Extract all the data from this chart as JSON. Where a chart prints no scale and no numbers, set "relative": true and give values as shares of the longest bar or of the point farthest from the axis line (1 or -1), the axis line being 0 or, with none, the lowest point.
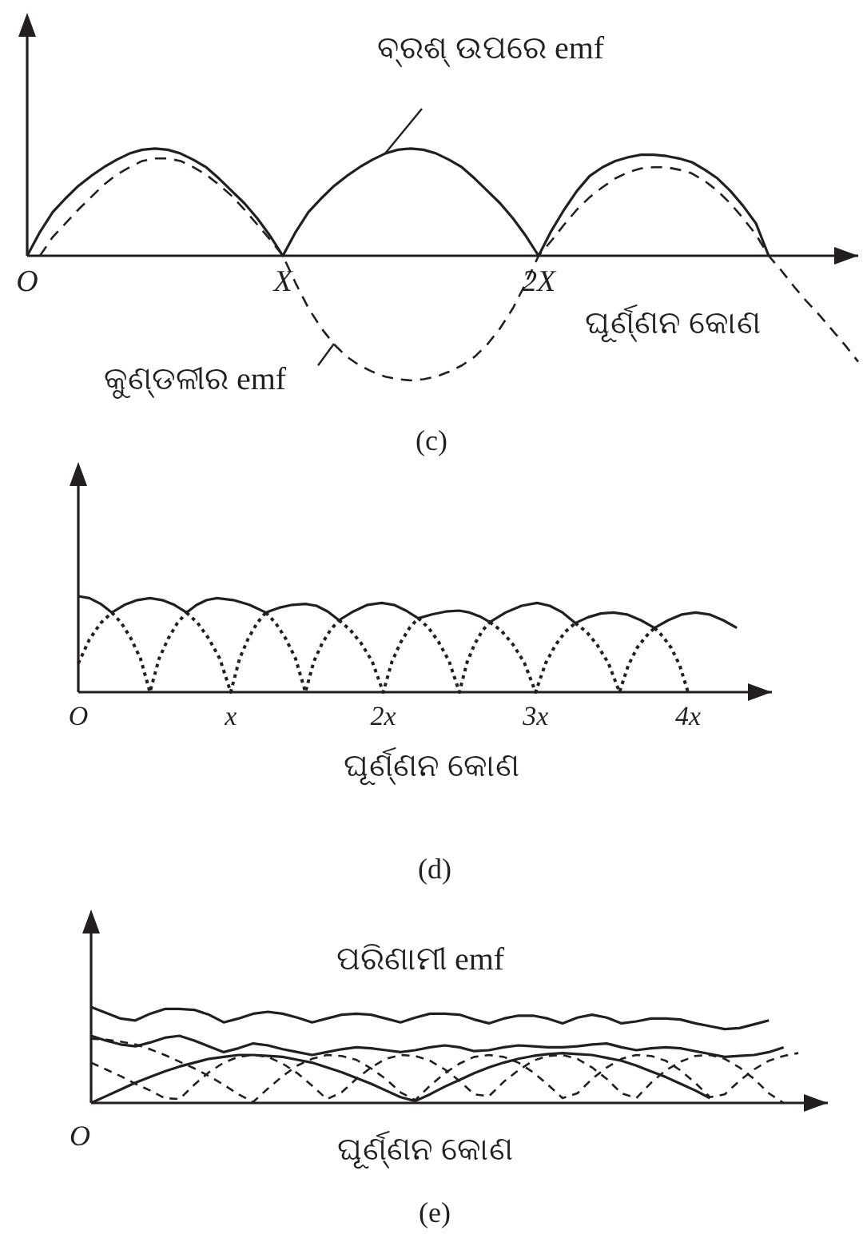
{
  "chart_data": [
    {
      "type": "line",
      "title": "(c)",
      "xlabel": "ଘୂର୍ଣ୍ଣନ କୋଣ",
      "relative": true,
      "marker": "none",
      "tick_labels": "x",
      "categories": [
        "O",
        null,
        null,
        null,
        null,
        null,
        null,
        null,
        null,
        null,
        null,
        null,
        null,
        null,
        null,
        null,
        null,
        null,
        null,
        null,
        "X",
        null,
        null,
        null,
        null,
        null,
        null,
        null,
        null,
        null,
        null,
        null,
        null,
        null,
        null,
        null,
        null,
        null,
        null,
        null,
        "2X",
        null,
        null,
        null,
        null,
        null,
        null,
        null,
        null,
        null,
        null,
        null,
        null,
        null,
        null,
        null,
        null,
        null,
        null,
        null,
        null,
        null,
        null,
        null,
        null,
        null
      ],
      "series": [
        {
          "name": "ବ୍ରଶ୍ ଉପରେ emf",
          "color": "#231f20",
          "line_style": "solid",
          "values": [
            0,
            0.19,
            0.35,
            0.46,
            0.56,
            0.64,
            0.71,
            0.77,
            0.82,
            0.85,
            0.86,
            0.85,
            0.82,
            0.77,
            0.71,
            0.62,
            0.52,
            0.42,
            0.3,
            0.16,
            0,
            0.19,
            0.35,
            0.46,
            0.56,
            0.64,
            0.71,
            0.77,
            0.82,
            0.85,
            0.86,
            0.85,
            0.82,
            0.77,
            0.71,
            0.62,
            0.52,
            0.42,
            0.3,
            0.16,
            0,
            0.2,
            0.37,
            0.52,
            0.64,
            0.71,
            0.76,
            0.79,
            0.81,
            0.81,
            0.8,
            0.78,
            0.75,
            0.69,
            0.62,
            0.52,
            0.4,
            0.26,
            0,
            null,
            null,
            null,
            null,
            null,
            null,
            null
          ]
        },
        {
          "name": "କୁଣ୍ଡଳୀର emf",
          "color": "#231f20",
          "line_style": "dashed",
          "values": [
            null,
            0,
            0.15,
            0.26,
            0.37,
            0.47,
            0.57,
            0.65,
            0.71,
            0.76,
            0.78,
            0.78,
            0.76,
            0.71,
            0.65,
            0.57,
            0.48,
            0.37,
            0.25,
            0.13,
            0,
            -0.22,
            -0.42,
            -0.58,
            -0.71,
            -0.81,
            -0.88,
            -0.93,
            -0.97,
            -0.99,
            -1,
            -0.99,
            -0.97,
            -0.93,
            -0.88,
            -0.81,
            -0.71,
            -0.58,
            -0.42,
            -0.22,
            0,
            0.12,
            0.25,
            0.37,
            0.47,
            0.55,
            0.62,
            0.67,
            0.7,
            0.71,
            0.71,
            0.69,
            0.66,
            0.6,
            0.52,
            0.42,
            0.3,
            0.17,
            0,
            -0.12,
            -0.25,
            -0.37,
            -0.48,
            -0.6,
            -0.72,
            -0.85
          ]
        }
      ]
    },
    {
      "type": "line",
      "title": "(d)",
      "xlabel": "ଘୂର୍ଣ୍ଣନ କୋଣ",
      "relative": true,
      "marker": "none",
      "tick_labels": "x",
      "xlim": [
        0,
        4.55
      ],
      "xticks": [
        {
          "value": 0,
          "label": "O"
        },
        {
          "value": 1,
          "label": "x"
        },
        {
          "value": 2,
          "label": "2x"
        },
        {
          "value": 3,
          "label": "3x"
        },
        {
          "value": 4,
          "label": "4x"
        }
      ],
      "series": [
        {
          "color": "#231f20",
          "line_style": "solid",
          "x": [
            0,
            0.073,
            0.147,
            0.22,
            0.303,
            0.387,
            0.47,
            0.55,
            0.63,
            0.71,
            0.777,
            0.843,
            0.91,
            1.017,
            1.123,
            1.23,
            1.317,
            1.403,
            1.49,
            1.563,
            1.637,
            1.71,
            1.803,
            1.897,
            1.99,
            2.07,
            2.15,
            2.23,
            2.32,
            2.41,
            2.5,
            2.567,
            2.633,
            2.7,
            2.803,
            2.907,
            3.01,
            3.093,
            3.177,
            3.26,
            3.343,
            3.427,
            3.51,
            3.6,
            3.69,
            3.78,
            3.87,
            3.96,
            4.05,
            4.14,
            4.23,
            4.32
          ],
          "values": [
            1,
            0.98,
            0.92,
            0.83,
            0.91,
            0.96,
            0.98,
            0.96,
            0.91,
            0.83,
            0.91,
            0.96,
            0.98,
            0.96,
            0.91,
            0.83,
            0.88,
            0.91,
            0.92,
            0.9,
            0.84,
            0.75,
            0.84,
            0.91,
            0.93,
            0.91,
            0.85,
            0.77,
            0.81,
            0.84,
            0.85,
            0.83,
            0.79,
            0.73,
            0.83,
            0.9,
            0.93,
            0.9,
            0.83,
            0.72,
            0.78,
            0.82,
            0.83,
            0.81,
            0.75,
            0.67,
            0.75,
            0.81,
            0.83,
            0.81,
            0.75,
            0.67
          ]
        },
        {
          "color": "#231f20",
          "line_style": "dotted",
          "x": [
            0.22,
            0.283,
            0.345,
            0.408,
            0.47,
            0.53,
            0.59,
            0.65,
            0.71,
            0.8,
            1.23,
            1.295,
            1.36,
            1.425,
            1.49,
            1.545,
            1.6,
            1.655,
            1.71,
            1.9,
            2.23,
            2.298,
            2.365,
            2.433,
            2.5,
            2.55,
            2.6,
            2.65,
            2.7,
            2.9,
            3.26,
            3.333,
            3.405,
            3.478,
            3.55,
            3.608,
            3.665,
            3.723,
            3.78
          ],
          "values": [
            0.83,
            0.72,
            0.56,
            0.35,
            0,
            0.35,
            0.56,
            0.72,
            0.83,
            null,
            0.83,
            0.72,
            0.56,
            0.35,
            0,
            0.32,
            0.51,
            0.65,
            0.75,
            null,
            0.77,
            0.67,
            0.52,
            0.32,
            0,
            0.31,
            0.5,
            0.64,
            0.73,
            null,
            0.72,
            0.63,
            0.49,
            0.3,
            0,
            0.28,
            0.46,
            0.58,
            0.67
          ]
        },
        {
          "color": "#231f20",
          "line_style": "dotted",
          "x": [
            0,
            0.073,
            0.147,
            0.22,
            0.4,
            0.71,
            0.783,
            0.855,
            0.928,
            1,
            1.058,
            1.115,
            1.173,
            1.23,
            1.4,
            1.71,
            1.783,
            1.855,
            1.928,
            2,
            2.058,
            2.115,
            2.173,
            2.23,
            2.4,
            2.7,
            2.775,
            2.85,
            2.925,
            3,
            3.065,
            3.13,
            3.195,
            3.26,
            3.5,
            3.78,
            3.835,
            3.89,
            3.945,
            4
          ],
          "values": [
            0.3,
            0.55,
            0.72,
            0.83,
            null,
            0.83,
            0.72,
            0.56,
            0.35,
            0,
            0.35,
            0.56,
            0.72,
            0.83,
            null,
            0.75,
            0.65,
            0.51,
            0.32,
            0,
            0.32,
            0.52,
            0.67,
            0.77,
            null,
            0.73,
            0.64,
            0.5,
            0.31,
            0,
            0.3,
            0.49,
            0.63,
            0.72,
            null,
            0.67,
            0.58,
            0.46,
            0.28,
            0
          ]
        }
      ]
    },
    {
      "type": "line",
      "title": "(e)",
      "xlabel": "ଘୂର୍ଣ୍ଣନ କୋଣ",
      "relative": true,
      "marker": "none",
      "tick_labels": "x",
      "annotations": [
        "O"
      ],
      "categories": [
        null,
        null,
        null,
        null,
        null,
        null,
        null,
        null,
        null,
        null,
        null,
        null,
        null,
        null,
        null,
        null,
        null,
        null,
        null,
        null,
        null,
        null,
        null,
        null,
        null,
        null,
        null,
        null,
        null,
        null,
        null,
        null,
        null,
        null,
        null,
        null,
        null,
        null,
        null,
        null,
        null,
        null,
        null,
        null,
        null,
        null,
        null,
        null,
        null,
        null,
        null
      ],
      "series": [
        {
          "name": "ପରିଣାମୀ emf",
          "color": "#231f20",
          "line_style": "solid",
          "values": [
            1,
            0.94,
            0.88,
            0.86,
            0.93,
            0.98,
            0.98,
            0.97,
            0.92,
            0.84,
            0.88,
            0.93,
            0.95,
            0.93,
            0.89,
            0.84,
            0.88,
            0.92,
            0.93,
            0.92,
            0.88,
            0.84,
            0.89,
            0.93,
            0.93,
            0.92,
            0.87,
            0.83,
            0.88,
            0.91,
            0.91,
            0.88,
            0.83,
            0.89,
            0.92,
            0.89,
            0.83,
            0.85,
            0.88,
            0.88,
            0.87,
            0.83,
            0.8,
            0.77,
            0.78,
            0.82,
            0.86,
            null,
            null,
            null,
            null
          ]
        },
        {
          "color": "#231f20",
          "line_style": "solid",
          "values": [
            0.7,
            0.65,
            0.61,
            0.59,
            0.63,
            0.68,
            0.7,
            0.65,
            0.59,
            0.53,
            0.57,
            0.62,
            0.6,
            0.56,
            0.53,
            0.5,
            0.53,
            0.56,
            0.58,
            0.57,
            0.55,
            0.53,
            0.55,
            0.58,
            0.6,
            0.58,
            0.54,
            0.55,
            0.58,
            0.6,
            0.59,
            0.58,
            0.58,
            0.59,
            0.61,
            0.62,
            0.58,
            0.55,
            0.57,
            0.58,
            0.57,
            0.54,
            0.51,
            0.48,
            0.49,
            0.5,
            0.53,
            0.58,
            null,
            null,
            null
          ]
        },
        {
          "color": "#231f20",
          "line_style": "solid",
          "values": [
            0,
            0.07,
            0.14,
            0.21,
            0.27,
            0.33,
            0.38,
            0.42,
            0.46,
            0.48,
            0.5,
            0.5,
            0.49,
            0.48,
            0.45,
            0.42,
            0.37,
            0.32,
            0.26,
            0.2,
            0.13,
            0.06,
            0.02,
            0.09,
            0.17,
            0.24,
            0.31,
            0.37,
            0.42,
            0.46,
            0.49,
            0.51,
            0.52,
            0.51,
            0.5,
            0.47,
            0.44,
            0.39,
            0.33,
            0.27,
            0.2,
            0.13,
            0.05,
            null,
            null,
            null,
            null,
            null,
            null,
            null,
            null
          ]
        },
        {
          "color": "#231f20",
          "line_style": "dashed",
          "values": [
            0.42,
            0.35,
            0.28,
            0.2,
            0.13,
            0.05,
            0.04,
            0.19,
            0.32,
            0.42,
            0.48,
            0.5,
            0.48,
            0.41,
            0.31,
            0.18,
            0.04,
            0.11,
            0.25,
            0.37,
            0.46,
            0.5,
            0.49,
            0.44,
            0.35,
            0.23,
            0.09,
            0.07,
            0.22,
            0.34,
            0.44,
            0.49,
            0.5,
            0.46,
            0.37,
            0.25,
            0.1,
            0.05,
            0.21,
            0.34,
            0.43,
            0.49,
            0.5,
            0.46,
            0.37,
            0.25,
            0.1,
            0,
            null,
            null,
            null
          ]
        },
        {
          "color": "#231f20",
          "line_style": "dashed",
          "values": [
            0.67,
            0.66,
            0.64,
            0.61,
            0.56,
            0.5,
            0.43,
            0.36,
            0.28,
            0.19,
            0.09,
            0.01,
            0.15,
            0.28,
            0.39,
            0.46,
            0.5,
            0.49,
            0.45,
            0.36,
            0.25,
            0.11,
            0.03,
            0.18,
            0.31,
            0.41,
            0.48,
            0.5,
            0.48,
            0.42,
            0.32,
            0.19,
            0.05,
            0.1,
            0.25,
            0.37,
            0.46,
            0.5,
            0.49,
            0.44,
            0.34,
            0.21,
            0.06,
            0.09,
            0.23,
            0.35,
            0.44,
            0.49,
            0.52,
            null,
            null
          ]
        }
      ]
    }
  ]
}
